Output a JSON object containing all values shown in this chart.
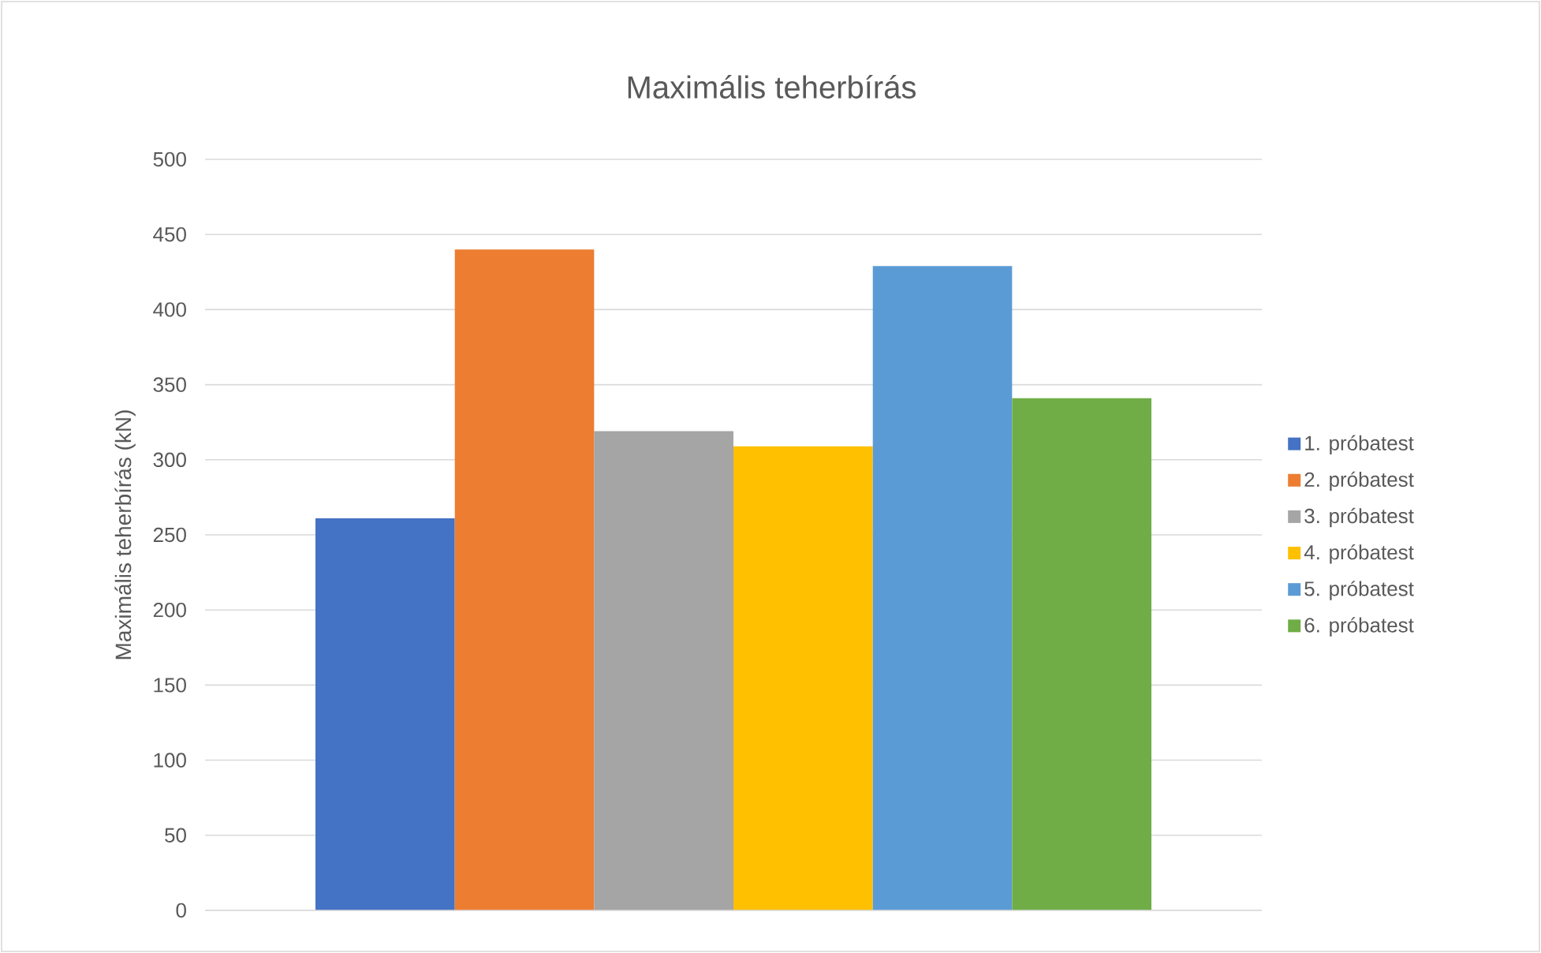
{
  "chart_data": {
    "type": "bar",
    "title": "Maximális teherbírás",
    "ylabel": "Maximális teherbírás (kN)",
    "categories": [
      null
    ],
    "series": [
      {
        "name": "1. próbatest",
        "color": "#4472c4",
        "values": [
          261
        ]
      },
      {
        "name": "2. próbatest",
        "color": "#ed7d31",
        "values": [
          440
        ]
      },
      {
        "name": "3. próbatest",
        "color": "#a5a5a5",
        "values": [
          319
        ]
      },
      {
        "name": "4. próbatest",
        "color": "#ffc000",
        "values": [
          309
        ]
      },
      {
        "name": "5. próbatest",
        "color": "#5b9bd5",
        "values": [
          429
        ]
      },
      {
        "name": "6. próbatest",
        "color": "#70ad47",
        "values": [
          341
        ]
      }
    ],
    "ylim": [
      0,
      500
    ],
    "yticks": [
      0,
      50,
      100,
      150,
      200,
      250,
      300,
      350,
      400,
      450,
      500
    ],
    "grid": "y",
    "legend": "right"
  }
}
